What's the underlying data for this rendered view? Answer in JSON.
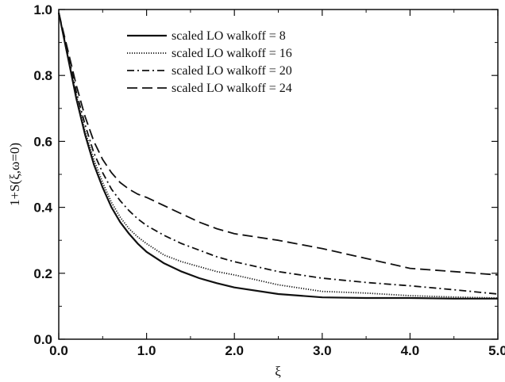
{
  "chart_data": {
    "type": "line",
    "title": "",
    "xlabel": "ξ",
    "ylabel": "1+S(ξ,ω=0)",
    "xlim": [
      0.0,
      5.0
    ],
    "ylim": [
      0.0,
      1.0
    ],
    "xticks": [
      0.0,
      1.0,
      2.0,
      3.0,
      4.0,
      5.0
    ],
    "xtick_labels": [
      "0.0",
      "1.0",
      "2.0",
      "3.0",
      "4.0",
      "5.0"
    ],
    "yticks": [
      0.0,
      0.2,
      0.4,
      0.6,
      0.8,
      1.0
    ],
    "ytick_labels": [
      "0.0",
      "0.2",
      "0.4",
      "0.6",
      "0.8",
      "1.0"
    ],
    "grid": false,
    "legend_position": "top-center",
    "series": [
      {
        "name": "scaled LO walkoff = 8",
        "style": "solid",
        "x": [
          0.0,
          0.1,
          0.2,
          0.3,
          0.4,
          0.5,
          0.6,
          0.7,
          0.8,
          0.9,
          1.0,
          1.2,
          1.4,
          1.6,
          1.8,
          2.0,
          2.5,
          3.0,
          3.5,
          4.0,
          4.5,
          5.0
        ],
        "y": [
          0.99,
          0.86,
          0.73,
          0.62,
          0.53,
          0.46,
          0.4,
          0.355,
          0.32,
          0.29,
          0.265,
          0.23,
          0.205,
          0.185,
          0.17,
          0.157,
          0.137,
          0.127,
          0.125,
          0.125,
          0.123,
          0.123
        ]
      },
      {
        "name": "scaled LO walkoff = 16",
        "style": "dotted",
        "x": [
          0.0,
          0.1,
          0.2,
          0.3,
          0.4,
          0.5,
          0.6,
          0.7,
          0.8,
          0.9,
          1.0,
          1.2,
          1.4,
          1.6,
          1.8,
          2.0,
          2.5,
          3.0,
          3.5,
          4.0,
          4.5,
          5.0
        ],
        "y": [
          0.99,
          0.86,
          0.74,
          0.63,
          0.545,
          0.475,
          0.415,
          0.37,
          0.335,
          0.31,
          0.29,
          0.255,
          0.235,
          0.22,
          0.205,
          0.195,
          0.165,
          0.145,
          0.14,
          0.132,
          0.128,
          0.125
        ]
      },
      {
        "name": "scaled LO walkoff = 20",
        "style": "dash-dot",
        "x": [
          0.0,
          0.1,
          0.2,
          0.3,
          0.4,
          0.5,
          0.6,
          0.7,
          0.8,
          0.9,
          1.0,
          1.2,
          1.4,
          1.6,
          1.8,
          2.0,
          2.5,
          3.0,
          3.5,
          4.0,
          4.5,
          5.0
        ],
        "y": [
          0.99,
          0.87,
          0.75,
          0.65,
          0.565,
          0.505,
          0.455,
          0.42,
          0.39,
          0.365,
          0.345,
          0.315,
          0.29,
          0.27,
          0.25,
          0.235,
          0.205,
          0.185,
          0.172,
          0.162,
          0.15,
          0.137
        ]
      },
      {
        "name": "scaled LO walkoff = 24",
        "style": "dashed",
        "x": [
          0.0,
          0.1,
          0.2,
          0.3,
          0.4,
          0.5,
          0.6,
          0.7,
          0.8,
          0.9,
          1.0,
          1.2,
          1.4,
          1.6,
          1.8,
          2.0,
          2.5,
          3.0,
          3.5,
          4.0,
          4.5,
          5.0
        ],
        "y": [
          0.99,
          0.88,
          0.77,
          0.675,
          0.6,
          0.545,
          0.505,
          0.475,
          0.455,
          0.44,
          0.43,
          0.405,
          0.38,
          0.355,
          0.335,
          0.32,
          0.3,
          0.275,
          0.245,
          0.215,
          0.205,
          0.195
        ]
      }
    ]
  }
}
